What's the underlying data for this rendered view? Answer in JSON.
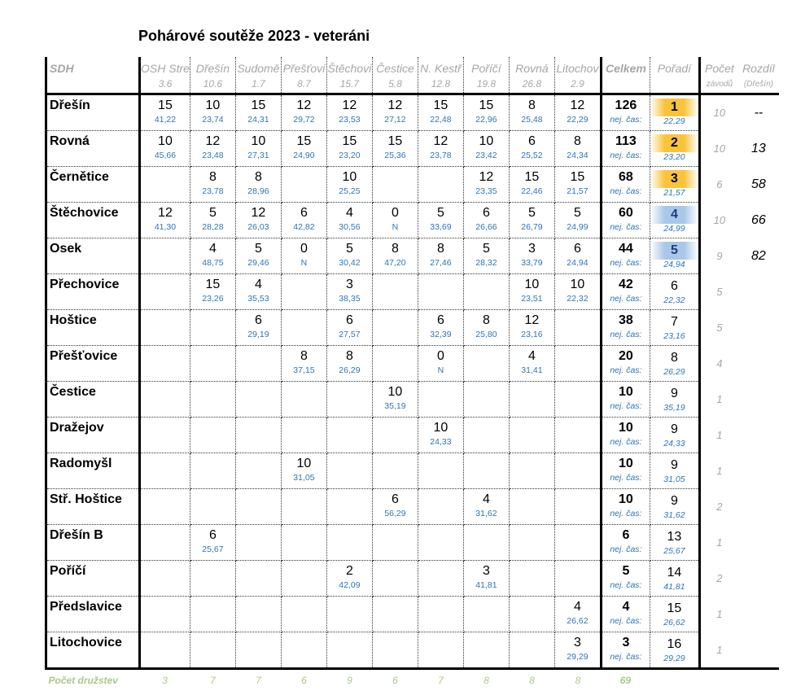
{
  "title": "Pohárové soutěže 2023 - veteráni",
  "headers": {
    "sdh": "SDH",
    "total": "Celkem",
    "rank": "Pořadí",
    "count": "Počet",
    "count_sub": "závodů",
    "diff": "Rozdíl",
    "diff_sub": "(Dřešín)",
    "best_label": "nej. čas:"
  },
  "races": [
    {
      "name": "OSH Stre",
      "dist": "3.6"
    },
    {
      "name": "Dřešín",
      "dist": "10.6"
    },
    {
      "name": "Sudomě",
      "dist": "1.7"
    },
    {
      "name": "Přešťovi",
      "dist": "8.7"
    },
    {
      "name": "Štěchovi",
      "dist": "15.7"
    },
    {
      "name": "Čestice",
      "dist": "5.8"
    },
    {
      "name": "N. Kestř",
      "dist": "12.8"
    },
    {
      "name": "Poříčí",
      "dist": "19.8"
    },
    {
      "name": "Rovná",
      "dist": "26.8"
    },
    {
      "name": "Litochov",
      "dist": "2.9"
    }
  ],
  "rows": [
    {
      "name": "Dřešín",
      "cells": [
        [
          "15",
          "41,22"
        ],
        [
          "10",
          "23,74"
        ],
        [
          "15",
          "24,31"
        ],
        [
          "12",
          "29,72"
        ],
        [
          "12",
          "23,53"
        ],
        [
          "12",
          "27,12"
        ],
        [
          "15",
          "22,48"
        ],
        [
          "15",
          "22,96"
        ],
        [
          "8",
          "25,48"
        ],
        [
          "12",
          "22,29"
        ]
      ],
      "total": "126",
      "rank": "1",
      "best": "22,29",
      "count": "10",
      "diff": "--"
    },
    {
      "name": "Rovná",
      "cells": [
        [
          "10",
          "45,66"
        ],
        [
          "12",
          "23,48"
        ],
        [
          "10",
          "27,31"
        ],
        [
          "15",
          "24,90"
        ],
        [
          "15",
          "23,20"
        ],
        [
          "15",
          "25,36"
        ],
        [
          "12",
          "23,78"
        ],
        [
          "10",
          "23,42"
        ],
        [
          "6",
          "25,52"
        ],
        [
          "8",
          "24,34"
        ]
      ],
      "total": "113",
      "rank": "2",
      "best": "23,20",
      "count": "10",
      "diff": "13"
    },
    {
      "name": "Černětice",
      "cells": [
        null,
        [
          "8",
          "23,78"
        ],
        [
          "8",
          "28,96"
        ],
        null,
        [
          "10",
          "25,25"
        ],
        null,
        null,
        [
          "12",
          "23,35"
        ],
        [
          "15",
          "22,46"
        ],
        [
          "15",
          "21,57"
        ]
      ],
      "total": "68",
      "rank": "3",
      "best": "21,57",
      "count": "6",
      "diff": "58"
    },
    {
      "name": "Štěchovice",
      "cells": [
        [
          "12",
          "41,30"
        ],
        [
          "5",
          "28,28"
        ],
        [
          "12",
          "26,03"
        ],
        [
          "6",
          "42,82"
        ],
        [
          "4",
          "30,56"
        ],
        [
          "0",
          "N"
        ],
        [
          "5",
          "33,69"
        ],
        [
          "6",
          "26,66"
        ],
        [
          "5",
          "26,79"
        ],
        [
          "5",
          "24,99"
        ]
      ],
      "total": "60",
      "rank": "4",
      "best": "24,99",
      "count": "10",
      "diff": "66"
    },
    {
      "name": "Osek",
      "cells": [
        null,
        [
          "4",
          "48,75"
        ],
        [
          "5",
          "29,46"
        ],
        [
          "0",
          "N"
        ],
        [
          "5",
          "30,42"
        ],
        [
          "8",
          "47,20"
        ],
        [
          "8",
          "27,46"
        ],
        [
          "5",
          "28,32"
        ],
        [
          "3",
          "33,79"
        ],
        [
          "6",
          "24,94"
        ]
      ],
      "total": "44",
      "rank": "5",
      "best": "24,94",
      "count": "9",
      "diff": "82"
    },
    {
      "name": "Přechovice",
      "cells": [
        null,
        [
          "15",
          "23,26"
        ],
        [
          "4",
          "35,53"
        ],
        null,
        [
          "3",
          "38,35"
        ],
        null,
        null,
        null,
        [
          "10",
          "23,51"
        ],
        [
          "10",
          "22,32"
        ]
      ],
      "total": "42",
      "rank": "6",
      "best": "22,32",
      "count": "5",
      "diff": ""
    },
    {
      "name": "Hoštice",
      "cells": [
        null,
        null,
        [
          "6",
          "29,19"
        ],
        null,
        [
          "6",
          "27,57"
        ],
        null,
        [
          "6",
          "32,39"
        ],
        [
          "8",
          "25,80"
        ],
        [
          "12",
          "23,16"
        ],
        null
      ],
      "total": "38",
      "rank": "7",
      "best": "23,16",
      "count": "5",
      "diff": ""
    },
    {
      "name": "Přešťovice",
      "cells": [
        null,
        null,
        null,
        [
          "8",
          "37,15"
        ],
        [
          "8",
          "26,29"
        ],
        null,
        [
          "0",
          "N"
        ],
        null,
        [
          "4",
          "31,41"
        ],
        null
      ],
      "total": "20",
      "rank": "8",
      "best": "26,29",
      "count": "4",
      "diff": ""
    },
    {
      "name": "Čestice",
      "cells": [
        null,
        null,
        null,
        null,
        null,
        [
          "10",
          "35,19"
        ],
        null,
        null,
        null,
        null
      ],
      "total": "10",
      "rank": "9",
      "best": "35,19",
      "count": "1",
      "diff": ""
    },
    {
      "name": "Dražejov",
      "cells": [
        null,
        null,
        null,
        null,
        null,
        null,
        [
          "10",
          "24,33"
        ],
        null,
        null,
        null
      ],
      "total": "10",
      "rank": "9",
      "best": "24,33",
      "count": "1",
      "diff": ""
    },
    {
      "name": "Radomyšl",
      "cells": [
        null,
        null,
        null,
        [
          "10",
          "31,05"
        ],
        null,
        null,
        null,
        null,
        null,
        null
      ],
      "total": "10",
      "rank": "9",
      "best": "31,05",
      "count": "1",
      "diff": ""
    },
    {
      "name": "Stř. Hoštice",
      "cells": [
        null,
        null,
        null,
        null,
        null,
        [
          "6",
          "56,29"
        ],
        null,
        [
          "4",
          "31,62"
        ],
        null,
        null
      ],
      "total": "10",
      "rank": "9",
      "best": "31,62",
      "count": "2",
      "diff": ""
    },
    {
      "name": "Dřešín B",
      "cells": [
        null,
        [
          "6",
          "25,67"
        ],
        null,
        null,
        null,
        null,
        null,
        null,
        null,
        null
      ],
      "total": "6",
      "rank": "13",
      "best": "25,67",
      "count": "1",
      "diff": ""
    },
    {
      "name": "Poříčí",
      "cells": [
        null,
        null,
        null,
        null,
        [
          "2",
          "42,09"
        ],
        null,
        null,
        [
          "3",
          "41,81"
        ],
        null,
        null
      ],
      "total": "5",
      "rank": "14",
      "best": "41,81",
      "count": "2",
      "diff": ""
    },
    {
      "name": "Předslavice",
      "cells": [
        null,
        null,
        null,
        null,
        null,
        null,
        null,
        null,
        null,
        [
          "4",
          "26,62"
        ]
      ],
      "total": "4",
      "rank": "15",
      "best": "26,62",
      "count": "1",
      "diff": ""
    },
    {
      "name": "Litochovice",
      "cells": [
        null,
        null,
        null,
        null,
        null,
        null,
        null,
        null,
        null,
        [
          "3",
          "29,29"
        ]
      ],
      "total": "3",
      "rank": "16",
      "best": "29,29",
      "count": "1",
      "diff": ""
    }
  ],
  "footer": {
    "label": "Počet družstev",
    "counts": [
      "3",
      "7",
      "7",
      "6",
      "9",
      "6",
      "7",
      "8",
      "8",
      "8"
    ],
    "total": "69"
  },
  "colors": {
    "gold": "#f9c43c",
    "blue": "#a9c7e8",
    "time": "#2e75b6",
    "footer": "#a9c98a"
  }
}
